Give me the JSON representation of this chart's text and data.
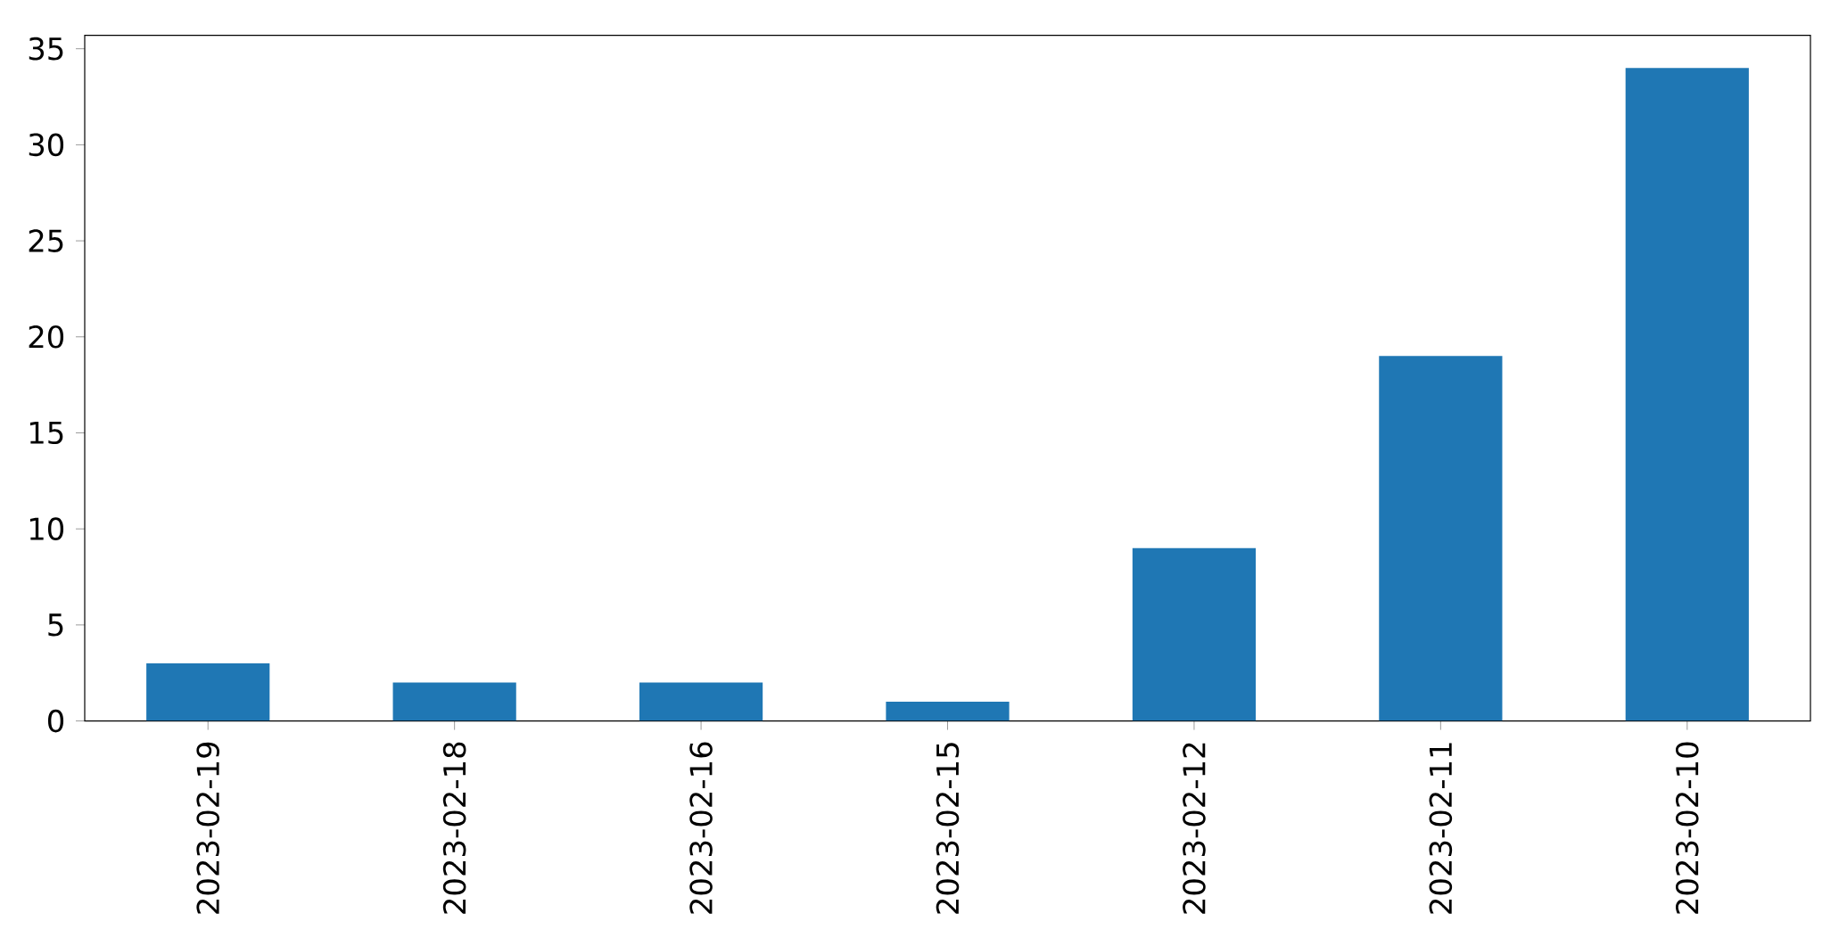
{
  "chart_data": {
    "type": "bar",
    "categories": [
      "2023-02-19",
      "2023-02-18",
      "2023-02-16",
      "2023-02-15",
      "2023-02-12",
      "2023-02-11",
      "2023-02-10"
    ],
    "values": [
      3,
      2,
      2,
      1,
      9,
      19,
      34
    ],
    "color": "#1f77b4",
    "ylim": [
      0,
      35.7
    ],
    "yticks": [
      0,
      5,
      10,
      15,
      20,
      25,
      30,
      35
    ]
  }
}
